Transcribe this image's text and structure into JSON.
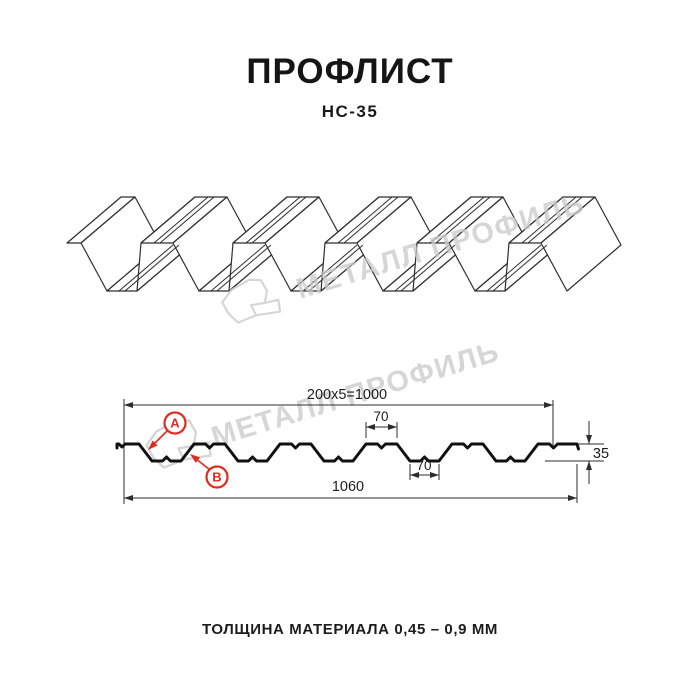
{
  "header": {
    "title": "ПРОФЛИСТ",
    "subtitle": "НС-35"
  },
  "watermark": {
    "text": "МЕТАЛЛ ПРОФИЛЬ",
    "color": "#c9c9c9"
  },
  "cross_section": {
    "dims": {
      "pitch": "200x5=1000",
      "crest_width": "70",
      "valley_width": "70",
      "height": "35",
      "total_width": "1060"
    },
    "callouts": {
      "a": "A",
      "b": "B"
    }
  },
  "footer": {
    "thickness": "ТОЛЩИНА МАТЕРИАЛА 0,45 – 0,9 ММ"
  },
  "colors": {
    "accent_red": "#e02b21",
    "line": "#2d2d2d",
    "watermark": "#c9c9c9"
  }
}
